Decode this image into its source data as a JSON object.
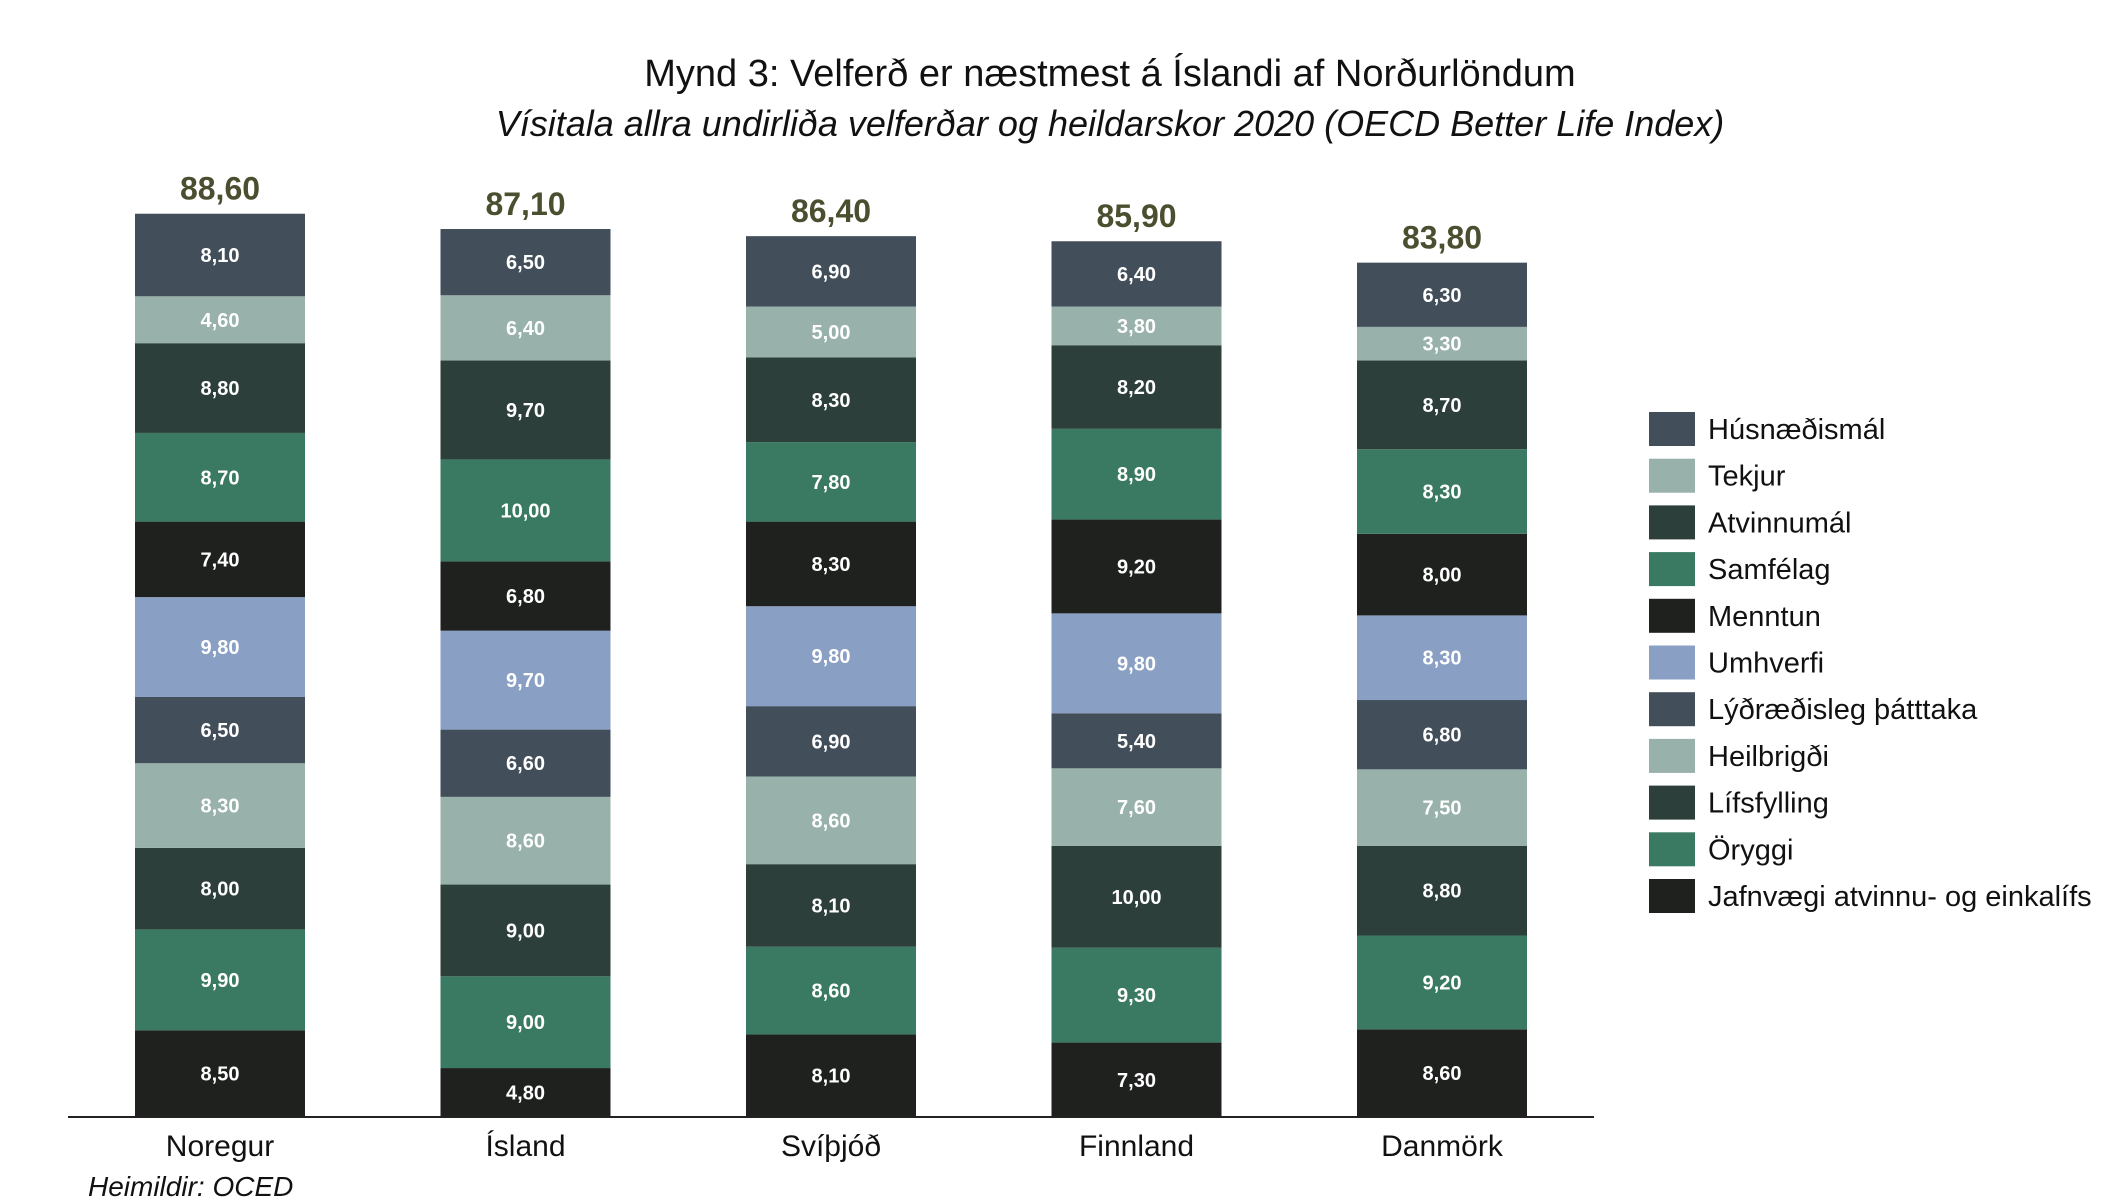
{
  "chart_data": {
    "type": "bar",
    "stacked": true,
    "title": "Mynd 3: Velferð er næstmest á Íslandi af Norðurlöndum",
    "subtitle": "Vísitala allra undirliða velferðar og heildarskor 2020 (OECD Better Life Index)",
    "source": "Heimildir: OCED",
    "categories": [
      "Noregur",
      "Ísland",
      "Svíþjóð",
      "Finnland",
      "Danmörk"
    ],
    "totals": [
      "88,60",
      "87,10",
      "86,40",
      "85,90",
      "83,80"
    ],
    "total_values": [
      88.6,
      87.1,
      86.4,
      85.9,
      83.8
    ],
    "legend_position": "right",
    "grid": false,
    "series": [
      {
        "name": "Jafnvægi atvinnu- og einkalífs",
        "color": "#1f211f",
        "values": [
          8.5,
          4.8,
          8.1,
          7.3,
          8.6
        ],
        "labels": [
          "8,50",
          "4,80",
          "8,10",
          "7,30",
          "8,60"
        ]
      },
      {
        "name": "Öryggi",
        "color": "#3b7a62",
        "values": [
          9.9,
          9.0,
          8.6,
          9.3,
          9.2
        ],
        "labels": [
          "9,90",
          "9,00",
          "8,60",
          "9,30",
          "9,20"
        ]
      },
      {
        "name": "Lífsfylling",
        "color": "#2c3f3a",
        "values": [
          8.0,
          9.0,
          8.1,
          10.0,
          8.8
        ],
        "labels": [
          "8,00",
          "9,00",
          "8,10",
          "10,00",
          "8,80"
        ]
      },
      {
        "name": "Heilbrigði",
        "color": "#98b1aa",
        "values": [
          8.3,
          8.6,
          8.6,
          7.6,
          7.5
        ],
        "labels": [
          "8,30",
          "8,60",
          "8,60",
          "7,60",
          "7,50"
        ]
      },
      {
        "name": "Lýðræðisleg þátttaka",
        "color": "#424f5a",
        "values": [
          6.5,
          6.6,
          6.9,
          5.4,
          6.8
        ],
        "labels": [
          "6,50",
          "6,60",
          "6,90",
          "5,40",
          "6,80"
        ]
      },
      {
        "name": "Umhverfi",
        "color": "#8a9fc4",
        "values": [
          9.8,
          9.7,
          9.8,
          9.8,
          8.3
        ],
        "labels": [
          "9,80",
          "9,70",
          "9,80",
          "9,80",
          "8,30"
        ]
      },
      {
        "name": "Menntun",
        "color": "#1f211f",
        "values": [
          7.4,
          6.8,
          8.3,
          9.2,
          8.0
        ],
        "labels": [
          "7,40",
          "6,80",
          "8,30",
          "9,20",
          "8,00"
        ]
      },
      {
        "name": "Samfélag",
        "color": "#3b7a62",
        "values": [
          8.7,
          10.0,
          7.8,
          8.9,
          8.3
        ],
        "labels": [
          "8,70",
          "10,00",
          "7,80",
          "8,90",
          "8,30"
        ]
      },
      {
        "name": "Atvinnumál",
        "color": "#2c3f3a",
        "values": [
          8.8,
          9.7,
          8.3,
          8.2,
          8.7
        ],
        "labels": [
          "8,80",
          "9,70",
          "8,30",
          "8,20",
          "8,70"
        ]
      },
      {
        "name": "Tekjur",
        "color": "#98b1aa",
        "values": [
          4.6,
          6.4,
          5.0,
          3.8,
          3.3
        ],
        "labels": [
          "4,60",
          "6,40",
          "5,00",
          "3,80",
          "3,30"
        ]
      },
      {
        "name": "Húsnæðismál",
        "color": "#424f5a",
        "values": [
          8.1,
          6.5,
          6.9,
          6.4,
          6.3
        ],
        "labels": [
          "8,10",
          "6,50",
          "6,90",
          "6,40",
          "6,30"
        ]
      }
    ],
    "legend_order": [
      "Húsnæðismál",
      "Tekjur",
      "Atvinnumál",
      "Samfélag",
      "Menntun",
      "Umhverfi",
      "Lýðræðisleg þátttaka",
      "Heilbrigði",
      "Lífsfylling",
      "Öryggi",
      "Jafnvægi atvinnu- og einkalífs"
    ]
  }
}
